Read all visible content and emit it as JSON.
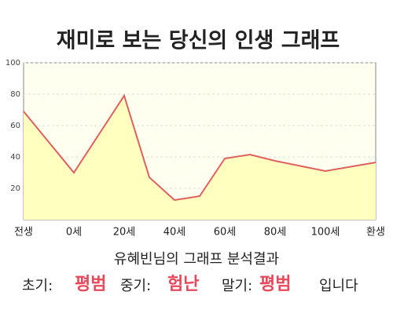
{
  "chart_data": {
    "type": "area",
    "title": "재미로 보는 당신의 인생 그래프",
    "x": [
      -20,
      0,
      20,
      30,
      40,
      50,
      60,
      70,
      80,
      100,
      120
    ],
    "values": [
      69,
      30,
      79,
      27,
      12.5,
      15,
      39,
      41.5,
      37.5,
      31,
      36.5
    ],
    "color": "#e06060",
    "fill": "#ffffc0",
    "xlim": [
      -20,
      120
    ],
    "xticks": [
      {
        "value": -20,
        "label": "전생"
      },
      {
        "value": 0,
        "label": "0세"
      },
      {
        "value": 20,
        "label": "20세"
      },
      {
        "value": 40,
        "label": "40세"
      },
      {
        "value": 60,
        "label": "60세"
      },
      {
        "value": 80,
        "label": "80세"
      },
      {
        "value": 100,
        "label": "100세"
      },
      {
        "value": 120,
        "label": "환생"
      }
    ],
    "ylim": [
      0,
      100
    ],
    "yticks": [
      20,
      40,
      60,
      80,
      100
    ],
    "grid": true
  },
  "analysis": {
    "heading": "유혜빈님의 그래프 분석결과",
    "early_label": "초기:",
    "early": "평범",
    "middle_label": "중기:",
    "middle": "험난",
    "late_label": "말기:",
    "late": "평범",
    "ending": "입니다"
  }
}
